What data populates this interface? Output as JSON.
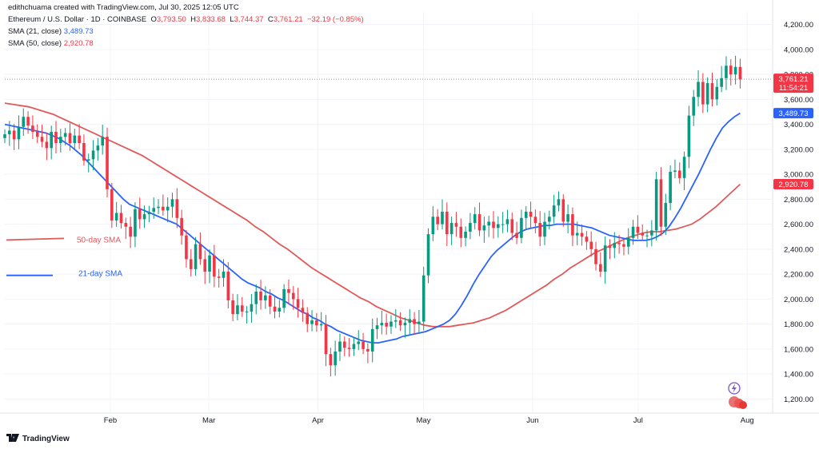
{
  "header": {
    "creator": "edithchuama created with TradingView.com, Jul 30, 2025 12:05 UTC",
    "symbol": "Ethereum / U.S. Dollar · 1D · COINBASE",
    "o_label": "O",
    "o_value": "3,793.50",
    "h_label": "H",
    "h_value": "3,833.68",
    "l_label": "L",
    "l_value": "3,744.37",
    "c_label": "C",
    "c_value": "3,761.21",
    "change": "−32.19 (−0.85%)",
    "sma21_label": "SMA (21, close)",
    "sma21_value": "3,489.73",
    "sma50_label": "SMA (50, close)",
    "sma50_value": "2,920.78"
  },
  "footer": {
    "brand": "TradingView",
    "logo": "tradingview-logo-icon"
  },
  "colors": {
    "up": "#089981",
    "down": "#f23645",
    "sma21": "#2962ff",
    "sma50": "#e05a5a",
    "grid": "#f0f3fa"
  },
  "chart_data": {
    "type": "candlestick",
    "title": "Ethereum / U.S. Dollar · 1D · COINBASE",
    "ylim": [
      1100,
      4300
    ],
    "y_ticks": [
      "1,200.00",
      "1,400.00",
      "1,600.00",
      "1,800.00",
      "2,000.00",
      "2,200.00",
      "2,400.00",
      "2,600.00",
      "2,800.00",
      "3,000.00",
      "3,200.00",
      "3,400.00",
      "3,600.00",
      "3,800.00",
      "4,000.00",
      "4,200.00"
    ],
    "y_tick_values": [
      1200,
      1400,
      1600,
      1800,
      2000,
      2200,
      2400,
      2600,
      2800,
      3000,
      3200,
      3400,
      3600,
      3800,
      4000,
      4200
    ],
    "x_ticks": [
      "Feb",
      "Mar",
      "Apr",
      "May",
      "Jun",
      "Jul",
      "Aug"
    ],
    "x_tick_dates": [
      "2025-02-01",
      "2025-03-01",
      "2025-04-01",
      "2025-05-01",
      "2025-06-01",
      "2025-07-01",
      "2025-08-01"
    ],
    "x_range": [
      "2025-01-02",
      "2025-08-08"
    ],
    "price_labels": [
      {
        "text": "3,761.21",
        "sub": "11:54:21",
        "value": 3761.21,
        "color": "#f23645"
      },
      {
        "text": "3,489.73",
        "value": 3489.73,
        "color": "#2962ff"
      },
      {
        "text": "2,920.78",
        "value": 2920.78,
        "color": "#f23645"
      }
    ],
    "annotations": [
      {
        "text": "50-day SMA",
        "color": "#e05a5a"
      },
      {
        "text": "21-day SMA",
        "color": "#2962ff"
      }
    ],
    "closes": [
      3320,
      3350,
      3280,
      3380,
      3460,
      3390,
      3340,
      3300,
      3260,
      3210,
      3340,
      3250,
      3300,
      3330,
      3250,
      3310,
      3250,
      3110,
      3120,
      3190,
      3230,
      3300,
      2880,
      2630,
      2690,
      2610,
      2580,
      2500,
      2720,
      2640,
      2680,
      2700,
      2730,
      2740,
      2710,
      2740,
      2800,
      2650,
      2510,
      2320,
      2240,
      2440,
      2320,
      2220,
      2350,
      2180,
      2170,
      2220,
      1990,
      1880,
      1950,
      1900,
      1900,
      1960,
      2060,
      1990,
      2030,
      1940,
      1900,
      1930,
      2080,
      2050,
      2000,
      1930,
      1890,
      1800,
      1830,
      1790,
      1800,
      1560,
      1470,
      1580,
      1660,
      1610,
      1600,
      1640,
      1660,
      1600,
      1580,
      1760,
      1790,
      1810,
      1780,
      1820,
      1830,
      1790,
      1810,
      1840,
      1800,
      1820,
      2190,
      2520,
      2660,
      2600,
      2700,
      2520,
      2610,
      2580,
      2490,
      2540,
      2610,
      2680,
      2550,
      2590,
      2620,
      2570,
      2600,
      2600,
      2640,
      2530,
      2490,
      2650,
      2700,
      2660,
      2610,
      2500,
      2620,
      2660,
      2750,
      2800,
      2620,
      2680,
      2510,
      2530,
      2500,
      2460,
      2400,
      2280,
      2220,
      2430,
      2410,
      2450,
      2440,
      2420,
      2490,
      2580,
      2530,
      2510,
      2510,
      2550,
      2960,
      2580,
      2770,
      3020,
      3030,
      2970,
      3140,
      3470,
      3620,
      3740,
      3560,
      3730,
      3600,
      3700,
      3770,
      3870,
      3800,
      3860,
      3761
    ],
    "opens_note": "open of each candle equals previous close",
    "sma21": [
      3400,
      3390,
      3380,
      3370,
      3360,
      3350,
      3340,
      3330,
      3310,
      3290,
      3260,
      3230,
      3190,
      3150,
      3100,
      3050,
      3000,
      2950,
      2900,
      2850,
      2800,
      2760,
      2740,
      2720,
      2700,
      2680,
      2660,
      2640,
      2620,
      2600,
      2560,
      2520,
      2480,
      2440,
      2400,
      2360,
      2320,
      2280,
      2240,
      2200,
      2160,
      2130,
      2110,
      2090,
      2060,
      2040,
      2010,
      1990,
      1960,
      1930,
      1900,
      1880,
      1850,
      1830,
      1800,
      1780,
      1750,
      1730,
      1710,
      1690,
      1670,
      1660,
      1650,
      1650,
      1660,
      1670,
      1680,
      1700,
      1710,
      1720,
      1730,
      1740,
      1760,
      1780,
      1800,
      1830,
      1880,
      1950,
      2030,
      2120,
      2200,
      2270,
      2340,
      2390,
      2430,
      2470,
      2510,
      2540,
      2560,
      2570,
      2580,
      2590,
      2590,
      2600,
      2600,
      2600,
      2600,
      2590,
      2580,
      2570,
      2550,
      2530,
      2510,
      2500,
      2490,
      2480,
      2470,
      2470,
      2470,
      2480,
      2500,
      2530,
      2580,
      2650,
      2730,
      2820,
      2910,
      3000,
      3100,
      3200,
      3290,
      3370,
      3420,
      3460,
      3490
    ],
    "sma21_start_date": "2025-01-02",
    "sma50": [
      3570,
      3560,
      3550,
      3540,
      3520,
      3500,
      3480,
      3450,
      3420,
      3390,
      3360,
      3330,
      3300,
      3270,
      3240,
      3210,
      3180,
      3150,
      3110,
      3070,
      3030,
      2990,
      2950,
      2910,
      2870,
      2830,
      2790,
      2750,
      2710,
      2670,
      2630,
      2580,
      2540,
      2490,
      2440,
      2400,
      2350,
      2300,
      2250,
      2210,
      2170,
      2130,
      2090,
      2050,
      2010,
      1980,
      1940,
      1910,
      1880,
      1850,
      1830,
      1810,
      1790,
      1780,
      1780,
      1780,
      1790,
      1800,
      1810,
      1830,
      1850,
      1880,
      1910,
      1950,
      1990,
      2030,
      2070,
      2110,
      2160,
      2200,
      2250,
      2290,
      2330,
      2370,
      2400,
      2430,
      2460,
      2490,
      2510,
      2530,
      2540,
      2540,
      2550,
      2560,
      2580,
      2600,
      2640,
      2690,
      2740,
      2800,
      2860,
      2920
    ],
    "sma50_start_date": "2025-01-02"
  }
}
